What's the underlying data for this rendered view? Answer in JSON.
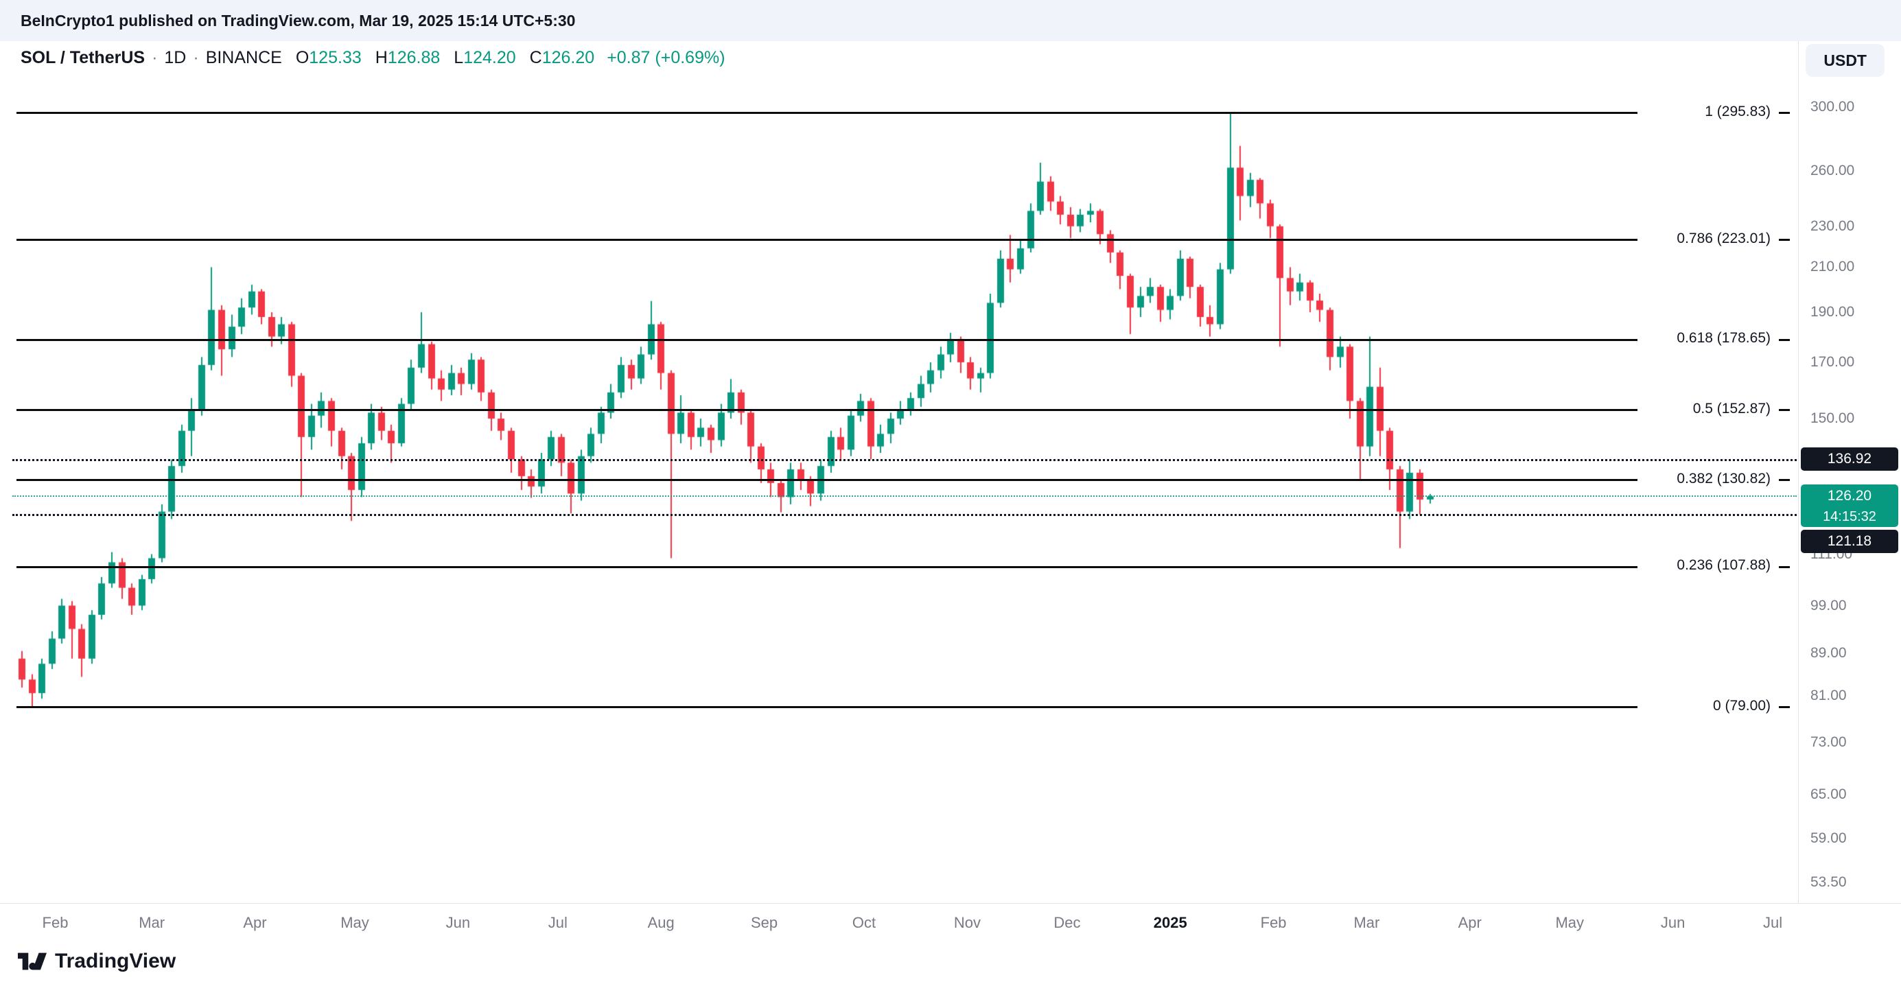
{
  "attribution": "BeInCrypto1 published on TradingView.com, Mar 19, 2025 15:14 UTC+5:30",
  "header": {
    "symbol": "SOL / TetherUS",
    "separator": "·",
    "interval": "1D",
    "exchange": "BINANCE",
    "open_label": "O",
    "open": "125.33",
    "high_label": "H",
    "high": "126.88",
    "low_label": "L",
    "low": "124.20",
    "close_label": "C",
    "close": "126.20",
    "change": "+0.87 (+0.69%)",
    "currency_button": "USDT"
  },
  "footer": {
    "brand": "TradingView"
  },
  "colors": {
    "up": "#089981",
    "down": "#f23645",
    "level_black": "#131722",
    "axis_text": "#787b86",
    "current": "#089981"
  },
  "chart_data": {
    "type": "candlestick",
    "symbol_title": "SOL / TetherUS · 1D · BINANCE",
    "price_scale": "logarithmic",
    "visible_price_range": [
      53.5,
      300
    ],
    "days_per_bar": 3,
    "fib_retracement": [
      {
        "label": "1 (295.83)",
        "price": 295.83
      },
      {
        "label": "0.786 (223.01)",
        "price": 223.01
      },
      {
        "label": "0.618 (178.65)",
        "price": 178.65
      },
      {
        "label": "0.5 (152.87)",
        "price": 152.87
      },
      {
        "label": "0.382 (130.82)",
        "price": 130.82
      },
      {
        "label": "0.236 (107.88)",
        "price": 107.88
      },
      {
        "label": "0 (79.00)",
        "price": 79.0
      }
    ],
    "dotted_levels": [
      {
        "label": "136.92",
        "price": 136.92
      },
      {
        "label": "121.18",
        "price": 121.18
      }
    ],
    "current_price": {
      "label": "126.20",
      "countdown": "14:15:32",
      "value": 126.2
    },
    "y_ticks": [
      "300.00",
      "260.00",
      "230.00",
      "210.00",
      "190.00",
      "170.00",
      "150.00",
      "111.00",
      "99.00",
      "89.00",
      "81.00",
      "73.00",
      "65.00",
      "59.00",
      "53.50"
    ],
    "x_ticks": [
      {
        "label": "Feb",
        "day": 10
      },
      {
        "label": "Mar",
        "day": 39
      },
      {
        "label": "Apr",
        "day": 70
      },
      {
        "label": "May",
        "day": 100
      },
      {
        "label": "Jun",
        "day": 131
      },
      {
        "label": "Jul",
        "day": 161
      },
      {
        "label": "Aug",
        "day": 192
      },
      {
        "label": "Sep",
        "day": 223
      },
      {
        "label": "Oct",
        "day": 253
      },
      {
        "label": "Nov",
        "day": 284
      },
      {
        "label": "Dec",
        "day": 314
      },
      {
        "label": "2025",
        "day": 345,
        "major": true
      },
      {
        "label": "Feb",
        "day": 376
      },
      {
        "label": "Mar",
        "day": 404
      },
      {
        "label": "Apr",
        "day": 435
      },
      {
        "label": "May",
        "day": 465
      },
      {
        "label": "Jun",
        "day": 496
      },
      {
        "label": "Jul",
        "day": 526
      }
    ],
    "candles": [
      [
        88,
        89.5,
        82.5,
        84
      ],
      [
        84,
        85,
        79,
        81.5
      ],
      [
        81.5,
        88,
        80.5,
        87
      ],
      [
        87,
        93.5,
        86,
        92
      ],
      [
        92,
        100.5,
        91,
        99
      ],
      [
        99,
        100,
        88,
        94
      ],
      [
        94,
        95,
        84.5,
        88
      ],
      [
        88,
        98,
        87,
        97
      ],
      [
        97,
        105.5,
        96,
        104
      ],
      [
        104,
        111.5,
        103,
        109
      ],
      [
        109,
        110,
        100.5,
        103
      ],
      [
        103,
        104,
        97,
        99
      ],
      [
        99,
        106,
        98,
        105
      ],
      [
        105,
        111,
        104,
        110
      ],
      [
        110,
        124,
        109,
        122
      ],
      [
        122,
        137,
        120,
        135
      ],
      [
        135,
        148,
        133,
        146
      ],
      [
        146,
        157,
        138,
        153
      ],
      [
        153,
        172,
        151,
        169
      ],
      [
        169,
        210,
        167,
        191
      ],
      [
        191,
        193,
        165,
        175
      ],
      [
        175,
        189,
        172,
        184
      ],
      [
        184,
        196,
        181,
        192
      ],
      [
        192,
        202,
        189,
        199
      ],
      [
        199,
        200,
        185,
        188
      ],
      [
        188,
        190,
        176,
        180
      ],
      [
        180,
        188,
        177,
        185
      ],
      [
        185,
        186,
        161,
        165
      ],
      [
        165,
        166,
        126,
        144
      ],
      [
        144,
        155,
        140,
        151
      ],
      [
        151,
        159,
        147,
        156
      ],
      [
        156,
        157,
        141,
        146
      ],
      [
        146,
        147,
        134,
        138
      ],
      [
        138,
        139,
        119.5,
        128
      ],
      [
        128,
        144,
        126,
        142
      ],
      [
        142,
        155,
        140,
        152
      ],
      [
        152,
        154,
        143,
        146
      ],
      [
        146,
        148,
        136,
        142
      ],
      [
        142,
        157,
        141,
        155
      ],
      [
        155,
        171,
        153,
        168
      ],
      [
        168,
        190,
        166,
        177
      ],
      [
        177,
        178,
        160,
        164
      ],
      [
        164,
        167,
        156,
        160
      ],
      [
        160,
        169,
        158,
        166
      ],
      [
        166,
        168,
        158,
        162
      ],
      [
        162,
        173.5,
        160,
        171
      ],
      [
        171,
        172,
        156,
        159
      ],
      [
        159,
        160,
        146,
        150
      ],
      [
        150,
        152,
        143,
        146
      ],
      [
        146,
        147,
        133,
        137
      ],
      [
        137,
        138,
        128,
        132
      ],
      [
        132,
        134,
        125.8,
        129
      ],
      [
        129,
        139,
        127,
        137
      ],
      [
        137,
        146,
        135,
        144
      ],
      [
        144,
        145,
        132,
        136
      ],
      [
        136,
        137,
        121.5,
        127
      ],
      [
        127,
        140,
        125,
        138
      ],
      [
        138,
        147,
        136,
        145
      ],
      [
        145,
        154,
        142,
        152
      ],
      [
        152,
        162,
        150,
        159
      ],
      [
        159,
        172,
        157,
        169
      ],
      [
        169,
        171,
        160,
        164
      ],
      [
        164,
        176,
        162,
        173
      ],
      [
        173,
        194.8,
        171,
        185
      ],
      [
        185,
        186,
        160,
        166
      ],
      [
        166,
        167,
        110,
        145
      ],
      [
        145,
        158,
        142,
        152
      ],
      [
        152,
        153,
        140,
        144
      ],
      [
        144,
        150,
        141,
        147
      ],
      [
        147,
        148,
        139,
        143
      ],
      [
        143,
        155,
        141,
        152
      ],
      [
        152,
        163.8,
        150,
        159
      ],
      [
        159,
        160,
        148,
        152
      ],
      [
        152,
        153,
        136,
        141
      ],
      [
        141,
        142,
        130,
        134
      ],
      [
        134,
        136,
        126,
        130
      ],
      [
        130,
        131,
        121.8,
        126
      ],
      [
        126,
        136,
        124,
        134
      ],
      [
        134,
        136,
        128,
        131
      ],
      [
        131,
        132,
        123.5,
        127
      ],
      [
        127,
        137,
        125,
        135
      ],
      [
        135,
        146,
        133,
        144
      ],
      [
        144,
        147,
        137,
        140
      ],
      [
        140,
        153,
        138,
        151
      ],
      [
        151,
        158.5,
        149,
        156
      ],
      [
        156,
        157,
        137,
        141
      ],
      [
        141,
        148,
        139,
        145
      ],
      [
        145,
        152,
        142,
        150
      ],
      [
        150,
        156,
        148,
        153
      ],
      [
        153,
        159,
        151,
        157
      ],
      [
        157,
        165,
        154,
        162
      ],
      [
        162,
        170,
        159,
        167
      ],
      [
        167,
        176,
        164,
        173
      ],
      [
        173,
        181.5,
        170,
        179
      ],
      [
        179,
        180,
        166,
        170
      ],
      [
        170,
        172,
        160,
        164
      ],
      [
        164,
        168,
        159,
        166
      ],
      [
        166,
        198,
        164,
        194
      ],
      [
        194,
        218,
        192,
        214
      ],
      [
        214,
        225.6,
        203,
        209
      ],
      [
        209,
        223,
        207,
        219
      ],
      [
        219,
        242,
        217,
        238
      ],
      [
        238,
        264.9,
        236,
        254
      ],
      [
        254,
        257,
        238,
        243
      ],
      [
        243,
        246,
        231,
        236
      ],
      [
        236,
        240,
        224,
        230
      ],
      [
        230,
        239,
        227,
        236
      ],
      [
        236,
        242,
        232,
        238
      ],
      [
        238,
        239,
        221,
        226
      ],
      [
        226,
        228,
        212,
        217
      ],
      [
        217,
        218,
        200,
        206
      ],
      [
        206,
        207,
        181,
        192
      ],
      [
        192,
        201,
        188,
        197
      ],
      [
        197,
        205,
        194,
        201
      ],
      [
        201,
        202,
        186,
        191
      ],
      [
        191,
        200,
        187,
        197
      ],
      [
        197,
        218,
        195,
        214
      ],
      [
        214,
        215,
        196,
        201
      ],
      [
        201,
        202,
        184,
        188
      ],
      [
        188,
        193,
        180,
        185
      ],
      [
        185,
        212,
        183,
        209
      ],
      [
        209,
        295.8,
        207,
        262
      ],
      [
        262,
        275,
        233,
        246
      ],
      [
        246,
        259,
        240,
        255
      ],
      [
        255,
        256,
        234,
        242
      ],
      [
        242,
        244,
        224,
        230
      ],
      [
        230,
        231,
        176,
        205
      ],
      [
        205,
        210,
        193,
        199
      ],
      [
        199,
        207,
        195,
        203
      ],
      [
        203,
        204,
        190,
        195
      ],
      [
        195,
        198,
        186,
        191
      ],
      [
        191,
        192,
        167,
        172
      ],
      [
        172,
        180,
        168,
        176
      ],
      [
        176,
        177,
        150,
        156
      ],
      [
        156,
        157,
        131,
        141
      ],
      [
        141,
        180,
        138,
        161
      ],
      [
        161,
        168,
        138,
        146
      ],
      [
        146,
        147,
        128,
        134
      ],
      [
        134,
        135,
        112.5,
        122
      ],
      [
        122,
        136.9,
        120,
        133
      ],
      [
        133,
        134,
        121.2,
        125.3
      ],
      [
        125.33,
        126.88,
        124.2,
        126.2
      ]
    ]
  }
}
